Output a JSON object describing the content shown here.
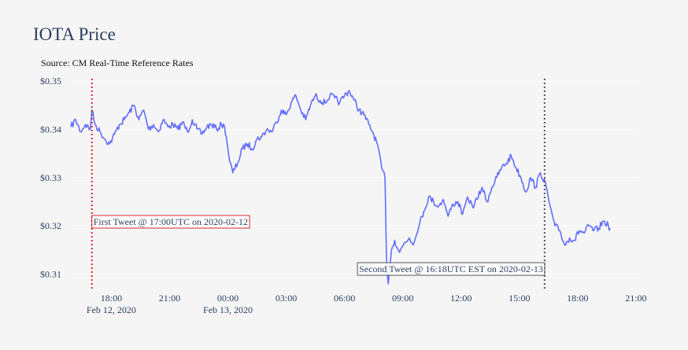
{
  "chart_data": {
    "type": "line",
    "title": "IOTA Price",
    "subtitle": "Source: CM Real-Time Reference Rates",
    "xlabel": "",
    "ylabel": "",
    "x_range": [
      "2020-02-12 15:55",
      "2020-02-13 21:10"
    ],
    "ylim": [
      0.3065,
      0.3505
    ],
    "y_ticks": [
      0.31,
      0.32,
      0.33,
      0.34,
      0.35
    ],
    "y_tick_labels": [
      "$0.31",
      "$0.32",
      "$0.33",
      "$0.34",
      "$0.35"
    ],
    "x_ticks": [
      {
        "t": "2020-02-12 18:00",
        "label": "18:00",
        "sublabel": "Feb 12, 2020"
      },
      {
        "t": "2020-02-12 21:00",
        "label": "21:00",
        "sublabel": ""
      },
      {
        "t": "2020-02-13 00:00",
        "label": "00:00",
        "sublabel": "Feb 13, 2020"
      },
      {
        "t": "2020-02-13 03:00",
        "label": "03:00",
        "sublabel": ""
      },
      {
        "t": "2020-02-13 06:00",
        "label": "06:00",
        "sublabel": ""
      },
      {
        "t": "2020-02-13 09:00",
        "label": "09:00",
        "sublabel": ""
      },
      {
        "t": "2020-02-13 12:00",
        "label": "12:00",
        "sublabel": ""
      },
      {
        "t": "2020-02-13 15:00",
        "label": "15:00",
        "sublabel": ""
      },
      {
        "t": "2020-02-13 18:00",
        "label": "18:00",
        "sublabel": ""
      },
      {
        "t": "2020-02-13 21:00",
        "label": "21:00",
        "sublabel": ""
      }
    ],
    "grid": true,
    "line_color": "#636efa",
    "series": [
      {
        "name": "",
        "x": [
          "2020-02-12 15:55",
          "2020-02-12 16:10",
          "2020-02-12 16:25",
          "2020-02-12 16:40",
          "2020-02-12 16:55",
          "2020-02-12 17:00",
          "2020-02-12 17:10",
          "2020-02-12 17:25",
          "2020-02-12 17:40",
          "2020-02-12 17:55",
          "2020-02-12 18:10",
          "2020-02-12 18:25",
          "2020-02-12 18:40",
          "2020-02-12 18:55",
          "2020-02-12 19:10",
          "2020-02-12 19:25",
          "2020-02-12 19:40",
          "2020-02-12 19:55",
          "2020-02-12 20:10",
          "2020-02-12 20:25",
          "2020-02-12 20:40",
          "2020-02-12 20:55",
          "2020-02-12 21:10",
          "2020-02-12 21:25",
          "2020-02-12 21:40",
          "2020-02-12 21:55",
          "2020-02-12 22:10",
          "2020-02-12 22:25",
          "2020-02-12 22:40",
          "2020-02-12 22:55",
          "2020-02-12 23:10",
          "2020-02-12 23:25",
          "2020-02-12 23:40",
          "2020-02-12 23:50",
          "2020-02-12 23:55",
          "2020-02-13 00:05",
          "2020-02-13 00:15",
          "2020-02-13 00:30",
          "2020-02-13 00:45",
          "2020-02-13 01:00",
          "2020-02-13 01:15",
          "2020-02-13 01:30",
          "2020-02-13 01:45",
          "2020-02-13 02:00",
          "2020-02-13 02:15",
          "2020-02-13 02:30",
          "2020-02-13 02:45",
          "2020-02-13 03:00",
          "2020-02-13 03:15",
          "2020-02-13 03:30",
          "2020-02-13 03:45",
          "2020-02-13 04:00",
          "2020-02-13 04:15",
          "2020-02-13 04:30",
          "2020-02-13 04:45",
          "2020-02-13 05:00",
          "2020-02-13 05:15",
          "2020-02-13 05:30",
          "2020-02-13 05:45",
          "2020-02-13 06:00",
          "2020-02-13 06:15",
          "2020-02-13 06:30",
          "2020-02-13 06:45",
          "2020-02-13 07:00",
          "2020-02-13 07:15",
          "2020-02-13 07:30",
          "2020-02-13 07:45",
          "2020-02-13 07:55",
          "2020-02-13 08:05",
          "2020-02-13 08:10",
          "2020-02-13 08:15",
          "2020-02-13 08:25",
          "2020-02-13 08:35",
          "2020-02-13 08:50",
          "2020-02-13 09:05",
          "2020-02-13 09:20",
          "2020-02-13 09:35",
          "2020-02-13 09:50",
          "2020-02-13 10:05",
          "2020-02-13 10:20",
          "2020-02-13 10:35",
          "2020-02-13 10:50",
          "2020-02-13 11:05",
          "2020-02-13 11:20",
          "2020-02-13 11:35",
          "2020-02-13 11:50",
          "2020-02-13 12:05",
          "2020-02-13 12:20",
          "2020-02-13 12:35",
          "2020-02-13 12:50",
          "2020-02-13 13:05",
          "2020-02-13 13:20",
          "2020-02-13 13:35",
          "2020-02-13 13:50",
          "2020-02-13 14:05",
          "2020-02-13 14:20",
          "2020-02-13 14:35",
          "2020-02-13 14:50",
          "2020-02-13 15:05",
          "2020-02-13 15:20",
          "2020-02-13 15:35",
          "2020-02-13 15:50",
          "2020-02-13 16:05",
          "2020-02-13 16:20",
          "2020-02-13 16:35",
          "2020-02-13 16:50",
          "2020-02-13 17:05",
          "2020-02-13 17:20",
          "2020-02-13 17:35",
          "2020-02-13 17:50",
          "2020-02-13 18:05",
          "2020-02-13 18:20",
          "2020-02-13 18:35",
          "2020-02-13 18:50",
          "2020-02-13 19:05",
          "2020-02-13 19:20",
          "2020-02-13 19:35",
          "2020-02-13 19:40"
        ],
        "y": [
          0.3405,
          0.342,
          0.3395,
          0.341,
          0.34,
          0.344,
          0.341,
          0.3395,
          0.338,
          0.337,
          0.339,
          0.341,
          0.342,
          0.3435,
          0.345,
          0.342,
          0.344,
          0.34,
          0.341,
          0.3395,
          0.342,
          0.3405,
          0.341,
          0.34,
          0.3415,
          0.3395,
          0.342,
          0.34,
          0.339,
          0.3405,
          0.341,
          0.34,
          0.341,
          0.3405,
          0.3385,
          0.3335,
          0.331,
          0.333,
          0.336,
          0.337,
          0.336,
          0.338,
          0.3385,
          0.34,
          0.3395,
          0.3415,
          0.344,
          0.343,
          0.3455,
          0.347,
          0.344,
          0.342,
          0.345,
          0.347,
          0.346,
          0.3455,
          0.347,
          0.3465,
          0.3455,
          0.347,
          0.348,
          0.346,
          0.344,
          0.343,
          0.341,
          0.339,
          0.336,
          0.332,
          0.33,
          0.312,
          0.308,
          0.315,
          0.317,
          0.3145,
          0.3165,
          0.3175,
          0.3165,
          0.32,
          0.323,
          0.326,
          0.325,
          0.324,
          0.3255,
          0.322,
          0.3245,
          0.325,
          0.3225,
          0.326,
          0.324,
          0.3255,
          0.328,
          0.325,
          0.328,
          0.33,
          0.332,
          0.333,
          0.3345,
          0.332,
          0.33,
          0.327,
          0.33,
          0.328,
          0.331,
          0.329,
          0.324,
          0.32,
          0.319,
          0.316,
          0.3175,
          0.317,
          0.319,
          0.3185,
          0.32,
          0.319,
          0.3195,
          0.321,
          0.32,
          0.3195
        ]
      }
    ],
    "annotations": [
      {
        "x": "2020-02-12 17:00",
        "text": "First Tweet @ 17:00UTC on 2020-02-12",
        "line_color": "#d62728",
        "line_style": "dotted",
        "box_color": "#d62728",
        "position": "middle-right of line"
      },
      {
        "x": "2020-02-13 16:18",
        "text": "Second Tweet @ 16:18UTC EST on 2020-02-13",
        "line_color": "#555555",
        "line_style": "dotted",
        "box_color": "#555555",
        "position": "bottom-left of line"
      }
    ]
  }
}
